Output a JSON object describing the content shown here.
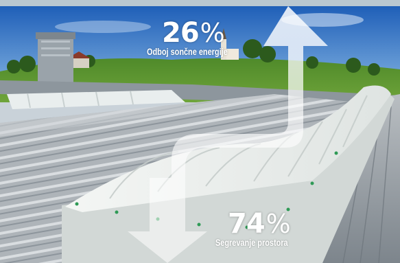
{
  "reflection": {
    "value": "26",
    "unit": "%",
    "label": "Odboj sončne energije"
  },
  "heating": {
    "value": "74",
    "unit": "%",
    "label": "Segrevanje prostora"
  }
}
